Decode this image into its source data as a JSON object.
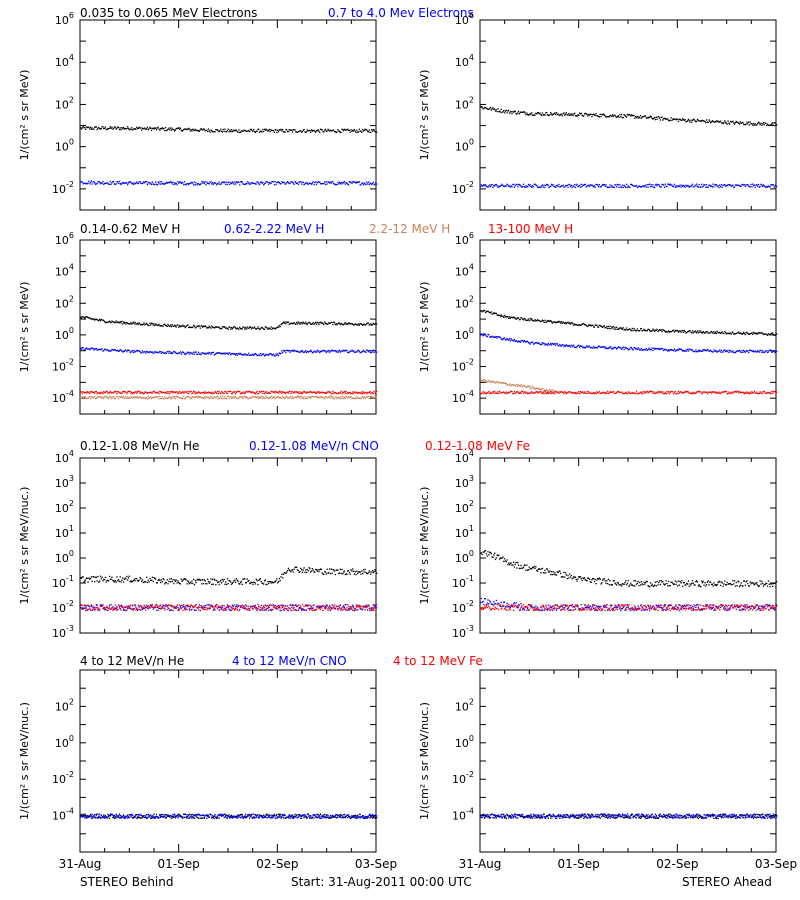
{
  "colors": {
    "black": "#000000",
    "blue": "#0000ff",
    "tan": "#c8845a",
    "red": "#ff0000"
  },
  "rows": [
    {
      "titles": [
        {
          "text": "0.035 to 0.065 MeV Electrons",
          "color": "#000000"
        },
        {
          "text": "0.7 to 4.0 Mev Electrons",
          "color": "#0000ff"
        }
      ]
    },
    {
      "titles": [
        {
          "text": "0.14-0.62 MeV H",
          "color": "#000000"
        },
        {
          "text": "0.62-2.22 MeV H",
          "color": "#0000ff"
        },
        {
          "text": "2.2-12 MeV H",
          "color": "#c8845a"
        },
        {
          "text": "13-100 MeV H",
          "color": "#ff0000"
        }
      ]
    },
    {
      "titles": [
        {
          "text": "0.12-1.08 MeV/n He",
          "color": "#000000"
        },
        {
          "text": "0.12-1.08 MeV/n CNO",
          "color": "#0000ff"
        },
        {
          "text": "0.12-1.08 MeV Fe",
          "color": "#ff0000"
        }
      ]
    },
    {
      "titles": [
        {
          "text": "4 to 12 MeV/n He",
          "color": "#000000"
        },
        {
          "text": "4 to 12 MeV/n CNO",
          "color": "#0000ff"
        },
        {
          "text": "4 to 12 MeV Fe",
          "color": "#ff0000"
        }
      ]
    }
  ],
  "x_tick_labels": [
    "31-Aug",
    "01-Sep",
    "02-Sep",
    "03-Sep"
  ],
  "footer": {
    "left": "STEREO Behind",
    "center": "Start: 31-Aug-2011 00:00 UTC",
    "right": "STEREO Ahead"
  },
  "chart_data": [
    {
      "type": "scatter",
      "panel": "row1-behind",
      "yscale": "log",
      "ylabel": "1/(cm² s sr MeV)",
      "ylim": [
        0.001,
        1000000
      ],
      "yticks": [
        0.01,
        1,
        100,
        10000,
        1000000
      ],
      "xlim": [
        "2011-08-31",
        "2011-09-03"
      ],
      "x_ticks": [
        "31-Aug",
        "01-Sep",
        "02-Sep",
        "03-Sep"
      ],
      "series": [
        {
          "name": "0.035 to 0.065 MeV Electrons",
          "color": "#000000",
          "x": [
            0,
            0.5,
            1,
            1.5,
            2,
            2.5,
            3
          ],
          "y": [
            8,
            8,
            7,
            6,
            6,
            6,
            6
          ]
        },
        {
          "name": "0.7 to 4.0 Mev Electrons",
          "color": "#0000ff",
          "x": [
            0,
            0.5,
            1,
            1.5,
            2,
            2.5,
            3
          ],
          "y": [
            0.022,
            0.02,
            0.02,
            0.02,
            0.02,
            0.02,
            0.02
          ]
        }
      ]
    },
    {
      "type": "scatter",
      "panel": "row1-ahead",
      "yscale": "log",
      "ylabel": "1/(cm² s sr MeV)",
      "ylim": [
        0.001,
        1000000
      ],
      "yticks": [
        0.01,
        1,
        100,
        10000,
        1000000
      ],
      "xlim": [
        "2011-08-31",
        "2011-09-03"
      ],
      "x_ticks": [
        "31-Aug",
        "01-Sep",
        "02-Sep",
        "03-Sep"
      ],
      "series": [
        {
          "name": "0.035 to 0.065 MeV Electrons",
          "color": "#000000",
          "x": [
            0,
            0.25,
            0.5,
            1,
            1.5,
            2,
            2.5,
            3
          ],
          "y": [
            80,
            50,
            40,
            35,
            30,
            20,
            15,
            12
          ]
        },
        {
          "name": "0.7 to 4.0 Mev Electrons",
          "color": "#0000ff",
          "x": [
            0,
            0.5,
            1,
            1.5,
            2,
            2.5,
            3
          ],
          "y": [
            0.015,
            0.015,
            0.015,
            0.015,
            0.015,
            0.015,
            0.015
          ]
        }
      ]
    },
    {
      "type": "scatter",
      "panel": "row2-behind",
      "yscale": "log",
      "ylabel": "1/(cm² s sr MeV)",
      "ylim": [
        1e-05,
        1000000
      ],
      "yticks": [
        0.0001,
        0.01,
        1,
        100,
        10000,
        1000000
      ],
      "xlim": [
        "2011-08-31",
        "2011-09-03"
      ],
      "x_ticks": [
        "31-Aug",
        "01-Sep",
        "02-Sep",
        "03-Sep"
      ],
      "series": [
        {
          "name": "0.14-0.62 MeV H",
          "color": "#000000",
          "x": [
            0,
            0.25,
            0.5,
            1,
            1.5,
            2,
            2.05,
            2.5,
            3
          ],
          "y": [
            15,
            8,
            6,
            4,
            3,
            3,
            6,
            6,
            5
          ]
        },
        {
          "name": "0.62-2.22 MeV H",
          "color": "#0000ff",
          "x": [
            0,
            0.5,
            1,
            1.5,
            2,
            2.05,
            3
          ],
          "y": [
            0.15,
            0.1,
            0.08,
            0.07,
            0.06,
            0.1,
            0.1
          ]
        },
        {
          "name": "2.2-12 MeV H",
          "color": "#c8845a",
          "x": [
            0,
            1,
            2,
            3
          ],
          "y": [
            0.00012,
            0.00012,
            0.00012,
            0.00012
          ]
        },
        {
          "name": "13-100 MeV H",
          "color": "#ff0000",
          "x": [
            0,
            1,
            2,
            3
          ],
          "y": [
            0.00025,
            0.00025,
            0.00025,
            0.00025
          ]
        }
      ]
    },
    {
      "type": "scatter",
      "panel": "row2-ahead",
      "yscale": "log",
      "ylabel": "1/(cm² s sr MeV)",
      "ylim": [
        1e-05,
        1000000
      ],
      "yticks": [
        0.0001,
        0.01,
        1,
        100,
        10000,
        1000000
      ],
      "xlim": [
        "2011-08-31",
        "2011-09-03"
      ],
      "x_ticks": [
        "31-Aug",
        "01-Sep",
        "02-Sep",
        "03-Sep"
      ],
      "series": [
        {
          "name": "0.14-0.62 MeV H",
          "color": "#000000",
          "x": [
            0,
            0.25,
            0.5,
            1,
            1.5,
            2,
            2.5,
            3
          ],
          "y": [
            40,
            15,
            10,
            5,
            2.5,
            1.8,
            1.5,
            1.2
          ]
        },
        {
          "name": "0.62-2.22 MeV H",
          "color": "#0000ff",
          "x": [
            0,
            0.25,
            0.5,
            1,
            1.5,
            2,
            2.5,
            3
          ],
          "y": [
            1.2,
            0.6,
            0.35,
            0.2,
            0.15,
            0.12,
            0.1,
            0.1
          ]
        },
        {
          "name": "2.2-12 MeV H",
          "color": "#c8845a",
          "x": [
            0,
            0.15,
            0.3,
            0.45,
            0.6,
            0.75
          ],
          "y": [
            0.0015,
            0.0011,
            0.0008,
            0.0006,
            0.0004,
            0.0003
          ]
        },
        {
          "name": "13-100 MeV H",
          "color": "#ff0000",
          "x": [
            0,
            1,
            2,
            3
          ],
          "y": [
            0.00025,
            0.00025,
            0.00025,
            0.00025
          ]
        }
      ]
    },
    {
      "type": "scatter",
      "panel": "row3-behind",
      "yscale": "log",
      "ylabel": "1/(cm² s sr MeV/nuc.)",
      "ylim": [
        0.001,
        10000
      ],
      "yticks": [
        0.001,
        0.01,
        0.1,
        1,
        10,
        100,
        1000,
        10000
      ],
      "xlim": [
        "2011-08-31",
        "2011-09-03"
      ],
      "x_ticks": [
        "31-Aug",
        "01-Sep",
        "02-Sep",
        "03-Sep"
      ],
      "series": [
        {
          "name": "0.12-1.08 MeV/n He",
          "color": "#000000",
          "x": [
            0,
            0.5,
            1,
            1.5,
            2,
            2.1,
            2.5,
            3
          ],
          "y": [
            0.15,
            0.15,
            0.12,
            0.12,
            0.12,
            0.4,
            0.3,
            0.3
          ]
        },
        {
          "name": "0.12-1.08 MeV/n CNO",
          "color": "#0000ff",
          "x": [
            0,
            1,
            2,
            3
          ],
          "y": [
            0.011,
            0.011,
            0.011,
            0.011
          ]
        },
        {
          "name": "0.12-1.08 MeV Fe",
          "color": "#ff0000",
          "x": [
            0,
            1,
            2,
            3
          ],
          "y": [
            0.011,
            0.011,
            0.011,
            0.011
          ]
        }
      ]
    },
    {
      "type": "scatter",
      "panel": "row3-ahead",
      "yscale": "log",
      "ylabel": "1/(cm² s sr MeV/nuc.)",
      "ylim": [
        0.001,
        10000
      ],
      "yticks": [
        0.001,
        0.01,
        0.1,
        1,
        10,
        100,
        1000,
        10000
      ],
      "xlim": [
        "2011-08-31",
        "2011-09-03"
      ],
      "x_ticks": [
        "31-Aug",
        "01-Sep",
        "02-Sep",
        "03-Sep"
      ],
      "series": [
        {
          "name": "0.12-1.08 MeV/n He",
          "color": "#000000",
          "x": [
            0,
            0.1,
            0.25,
            0.4,
            0.6,
            0.8,
            1,
            1.5,
            2,
            2.5,
            3
          ],
          "y": [
            2,
            1.5,
            0.8,
            0.5,
            0.35,
            0.25,
            0.15,
            0.1,
            0.1,
            0.1,
            0.1
          ]
        },
        {
          "name": "0.12-1.08 MeV/n CNO",
          "color": "#0000ff",
          "x": [
            0,
            0.5,
            1,
            2,
            3
          ],
          "y": [
            0.02,
            0.011,
            0.011,
            0.011,
            0.011
          ]
        },
        {
          "name": "0.12-1.08 MeV Fe",
          "color": "#ff0000",
          "x": [
            0,
            1,
            2,
            3
          ],
          "y": [
            0.011,
            0.011,
            0.011,
            0.011
          ]
        }
      ]
    },
    {
      "type": "scatter",
      "panel": "row4-behind",
      "yscale": "log",
      "ylabel": "1/(cm² s sr MeV/nuc.)",
      "ylim": [
        1e-06,
        10000
      ],
      "yticks": [
        0.0001,
        0.01,
        1,
        100
      ],
      "xlim": [
        "2011-08-31",
        "2011-09-03"
      ],
      "x_ticks": [
        "31-Aug",
        "01-Sep",
        "02-Sep",
        "03-Sep"
      ],
      "series": [
        {
          "name": "4 to 12 MeV/n He",
          "color": "#000000",
          "x": [
            0,
            1,
            2,
            3
          ],
          "y": [
            0.0001,
            0.0001,
            0.0001,
            0.0001
          ]
        },
        {
          "name": "4 to 12 MeV/n CNO",
          "color": "#0000ff",
          "x": [
            0,
            1,
            2,
            3
          ],
          "y": [
            0.0001,
            0.0001,
            0.0001,
            0.0001
          ]
        }
      ]
    },
    {
      "type": "scatter",
      "panel": "row4-ahead",
      "yscale": "log",
      "ylabel": "1/(cm² s sr MeV/nuc.)",
      "ylim": [
        1e-06,
        10000
      ],
      "yticks": [
        0.0001,
        0.01,
        1,
        100
      ],
      "xlim": [
        "2011-08-31",
        "2011-09-03"
      ],
      "x_ticks": [
        "31-Aug",
        "01-Sep",
        "02-Sep",
        "03-Sep"
      ],
      "series": [
        {
          "name": "4 to 12 MeV/n He",
          "color": "#000000",
          "x": [
            0,
            1,
            2,
            3
          ],
          "y": [
            0.0001,
            0.0001,
            0.0001,
            0.0001
          ]
        },
        {
          "name": "4 to 12 MeV/n CNO",
          "color": "#0000ff",
          "x": [
            0,
            1,
            2,
            3
          ],
          "y": [
            0.0001,
            0.0001,
            0.0001,
            0.0001
          ]
        }
      ]
    }
  ]
}
